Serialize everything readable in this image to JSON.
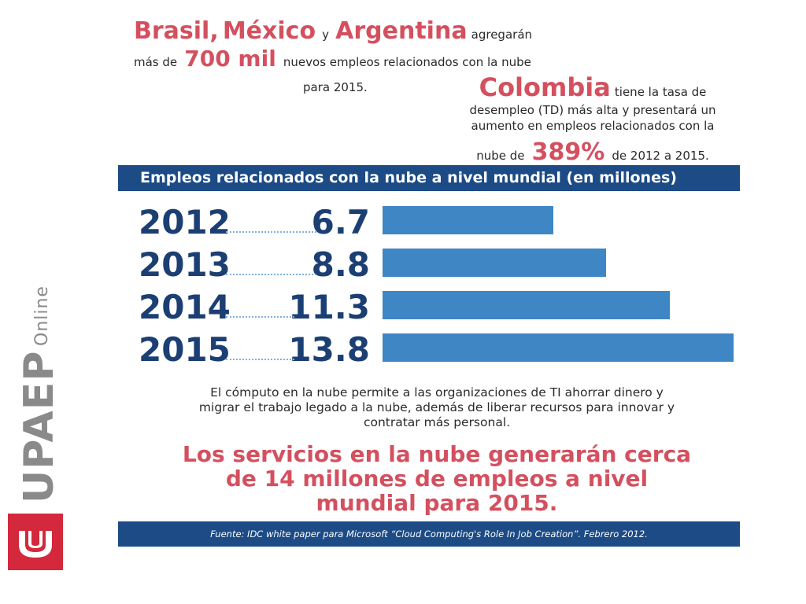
{
  "intro": {
    "countries": [
      "Brasil,",
      "México",
      "Argentina"
    ],
    "y": "y",
    "agregaran": "agregarán",
    "mas_de": "más de",
    "amount": "700 mil",
    "rest": "nuevos empleos relacionados con la nube",
    "year": "para 2015."
  },
  "colombia": {
    "name": "Colombia",
    "text1": "tiene la tasa de",
    "text2": "desempleo (TD) más alta y presentará un",
    "text3": "aumento en empleos relacionados con la",
    "text4a": "nube de",
    "pct": "389%",
    "text4b": "de 2012 a 2015."
  },
  "chart_data": {
    "type": "bar",
    "title": "Empleos relacionados con la nube a nivel mundial (en millones)",
    "categories": [
      "2012",
      "2013",
      "2014",
      "2015"
    ],
    "values": [
      6.7,
      8.8,
      11.3,
      13.8
    ],
    "value_labels": [
      "6.7",
      "8.8",
      "11.3",
      "13.8"
    ],
    "orientation": "horizontal",
    "bar_color": "#3f86c5",
    "label_color": "#1c3f73",
    "title_bar_color": "#1c4b86"
  },
  "description": "El cómputo en la nube permite a las organizaciones de TI ahorrar dinero y migrar el trabajo legado a la nube, además de liberar recursos para innovar y contratar más personal.",
  "headline": "Los servicios en la nube generarán cerca de 14 millones de empleos a nivel mundial para 2015.",
  "source": "Fuente: IDC white paper para Microsoft “Cloud Computing's Role In Job Creation”. Febrero 2012.",
  "logo": {
    "brand": "UPAEP",
    "sub": "Online",
    "brand_color": "#d4283c"
  }
}
